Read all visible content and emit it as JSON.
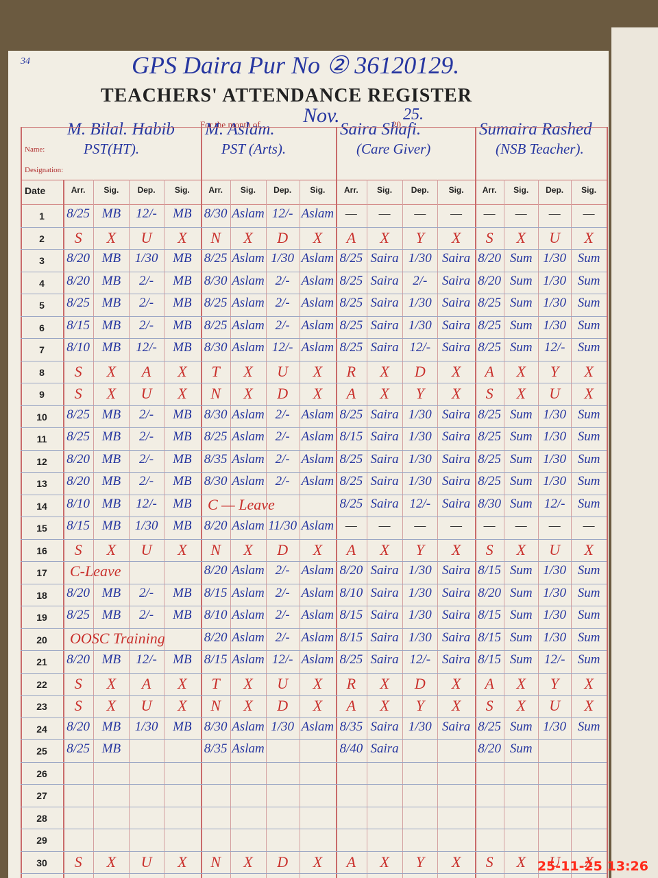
{
  "page_number": "34",
  "school": "GPS Daira Pur No ② 36120129.",
  "title": "TEACHERS' ATTENDANCE REGISTER",
  "month_label": "For the month of",
  "month": "Nov.",
  "year_prefix": "20",
  "year": "25.",
  "name_label": "Name:",
  "designation_label": "Designation:",
  "date_header": "Date",
  "column_headers": [
    "Arr.",
    "Sig.",
    "Dep.",
    "Sig."
  ],
  "teachers": [
    {
      "name": "M. Bilal. Habib",
      "designation": "PST(HT)."
    },
    {
      "name": "M. Aslam.",
      "designation": "PST (Arts)."
    },
    {
      "name": "Saira Shafi.",
      "designation": "(Care Giver)"
    },
    {
      "name": "Sumaira Rashed",
      "designation": "(NSB Teacher)."
    }
  ],
  "rows": [
    {
      "date": "1",
      "entries": [
        [
          "8/25",
          "MB",
          "12/-",
          "MB"
        ],
        [
          "8/30",
          "Aslam",
          "12/-",
          "Aslam"
        ],
        [
          "—",
          "—",
          "—",
          "—"
        ],
        [
          "—",
          "—",
          "—",
          "—"
        ]
      ]
    },
    {
      "date": "2",
      "entries": [
        [
          "S",
          "X",
          "U",
          "X"
        ],
        [
          "N",
          "X",
          "D",
          "X"
        ],
        [
          "A",
          "X",
          "Y",
          "X"
        ],
        [
          "S",
          "X",
          "U",
          "X"
        ]
      ]
    },
    {
      "date": "3",
      "entries": [
        [
          "8/20",
          "MB",
          "1/30",
          "MB"
        ],
        [
          "8/25",
          "Aslam",
          "1/30",
          "Aslam"
        ],
        [
          "8/25",
          "Saira",
          "1/30",
          "Saira"
        ],
        [
          "8/20",
          "Sum",
          "1/30",
          "Sum"
        ]
      ]
    },
    {
      "date": "4",
      "entries": [
        [
          "8/20",
          "MB",
          "2/-",
          "MB"
        ],
        [
          "8/30",
          "Aslam",
          "2/-",
          "Aslam"
        ],
        [
          "8/25",
          "Saira",
          "2/-",
          "Saira"
        ],
        [
          "8/20",
          "Sum",
          "1/30",
          "Sum"
        ]
      ]
    },
    {
      "date": "5",
      "entries": [
        [
          "8/25",
          "MB",
          "2/-",
          "MB"
        ],
        [
          "8/25",
          "Aslam",
          "2/-",
          "Aslam"
        ],
        [
          "8/25",
          "Saira",
          "1/30",
          "Saira"
        ],
        [
          "8/25",
          "Sum",
          "1/30",
          "Sum"
        ]
      ]
    },
    {
      "date": "6",
      "entries": [
        [
          "8/15",
          "MB",
          "2/-",
          "MB"
        ],
        [
          "8/25",
          "Aslam",
          "2/-",
          "Aslam"
        ],
        [
          "8/25",
          "Saira",
          "1/30",
          "Saira"
        ],
        [
          "8/25",
          "Sum",
          "1/30",
          "Sum"
        ]
      ]
    },
    {
      "date": "7",
      "entries": [
        [
          "8/10",
          "MB",
          "12/-",
          "MB"
        ],
        [
          "8/30",
          "Aslam",
          "12/-",
          "Aslam"
        ],
        [
          "8/25",
          "Saira",
          "12/-",
          "Saira"
        ],
        [
          "8/25",
          "Sum",
          "12/-",
          "Sum"
        ]
      ]
    },
    {
      "date": "8",
      "entries": [
        [
          "S",
          "X",
          "A",
          "X"
        ],
        [
          "T",
          "X",
          "U",
          "X"
        ],
        [
          "R",
          "X",
          "D",
          "X"
        ],
        [
          "A",
          "X",
          "Y",
          "X"
        ]
      ]
    },
    {
      "date": "9",
      "entries": [
        [
          "S",
          "X",
          "U",
          "X"
        ],
        [
          "N",
          "X",
          "D",
          "X"
        ],
        [
          "A",
          "X",
          "Y",
          "X"
        ],
        [
          "S",
          "X",
          "U",
          "X"
        ]
      ]
    },
    {
      "date": "10",
      "entries": [
        [
          "8/25",
          "MB",
          "2/-",
          "MB"
        ],
        [
          "8/30",
          "Aslam",
          "2/-",
          "Aslam"
        ],
        [
          "8/25",
          "Saira",
          "1/30",
          "Saira"
        ],
        [
          "8/25",
          "Sum",
          "1/30",
          "Sum"
        ]
      ]
    },
    {
      "date": "11",
      "entries": [
        [
          "8/25",
          "MB",
          "2/-",
          "MB"
        ],
        [
          "8/25",
          "Aslam",
          "2/-",
          "Aslam"
        ],
        [
          "8/15",
          "Saira",
          "1/30",
          "Saira"
        ],
        [
          "8/25",
          "Sum",
          "1/30",
          "Sum"
        ]
      ]
    },
    {
      "date": "12",
      "entries": [
        [
          "8/20",
          "MB",
          "2/-",
          "MB"
        ],
        [
          "8/35",
          "Aslam",
          "2/-",
          "Aslam"
        ],
        [
          "8/25",
          "Saira",
          "1/30",
          "Saira"
        ],
        [
          "8/25",
          "Sum",
          "1/30",
          "Sum"
        ]
      ]
    },
    {
      "date": "13",
      "entries": [
        [
          "8/20",
          "MB",
          "2/-",
          "MB"
        ],
        [
          "8/30",
          "Aslam",
          "2/-",
          "Aslam"
        ],
        [
          "8/25",
          "Saira",
          "1/30",
          "Saira"
        ],
        [
          "8/25",
          "Sum",
          "1/30",
          "Sum"
        ]
      ]
    },
    {
      "date": "14",
      "entries": [
        [
          "8/10",
          "MB",
          "12/-",
          "MB"
        ],
        {
          "note": "C — Leave"
        },
        [
          "8/25",
          "Saira",
          "12/-",
          "Saira"
        ],
        [
          "8/30",
          "Sum",
          "12/-",
          "Sum"
        ]
      ]
    },
    {
      "date": "15",
      "entries": [
        [
          "8/15",
          "MB",
          "1/30",
          "MB"
        ],
        [
          "8/20",
          "Aslam",
          "11/30",
          "Aslam"
        ],
        [
          "—",
          "—",
          "—",
          "—"
        ],
        [
          "—",
          "—",
          "—",
          "—"
        ]
      ]
    },
    {
      "date": "16",
      "entries": [
        [
          "S",
          "X",
          "U",
          "X"
        ],
        [
          "N",
          "X",
          "D",
          "X"
        ],
        [
          "A",
          "X",
          "Y",
          "X"
        ],
        [
          "S",
          "X",
          "U",
          "X"
        ]
      ]
    },
    {
      "date": "17",
      "entries": [
        {
          "note": "C-Leave"
        },
        [
          "8/20",
          "Aslam",
          "2/-",
          "Aslam"
        ],
        [
          "8/20",
          "Saira",
          "1/30",
          "Saira"
        ],
        [
          "8/15",
          "Sum",
          "1/30",
          "Sum"
        ]
      ]
    },
    {
      "date": "18",
      "entries": [
        [
          "8/20",
          "MB",
          "2/-",
          "MB"
        ],
        [
          "8/15",
          "Aslam",
          "2/-",
          "Aslam"
        ],
        [
          "8/10",
          "Saira",
          "1/30",
          "Saira"
        ],
        [
          "8/20",
          "Sum",
          "1/30",
          "Sum"
        ]
      ]
    },
    {
      "date": "19",
      "entries": [
        [
          "8/25",
          "MB",
          "2/-",
          "MB"
        ],
        [
          "8/10",
          "Aslam",
          "2/-",
          "Aslam"
        ],
        [
          "8/15",
          "Saira",
          "1/30",
          "Saira"
        ],
        [
          "8/15",
          "Sum",
          "1/30",
          "Sum"
        ]
      ]
    },
    {
      "date": "20",
      "entries": [
        {
          "note": "OOSC Training"
        },
        [
          "8/20",
          "Aslam",
          "2/-",
          "Aslam"
        ],
        [
          "8/15",
          "Saira",
          "1/30",
          "Saira"
        ],
        [
          "8/15",
          "Sum",
          "1/30",
          "Sum"
        ]
      ]
    },
    {
      "date": "21",
      "entries": [
        [
          "8/20",
          "MB",
          "12/-",
          "MB"
        ],
        [
          "8/15",
          "Aslam",
          "12/-",
          "Aslam"
        ],
        [
          "8/25",
          "Saira",
          "12/-",
          "Saira"
        ],
        [
          "8/15",
          "Sum",
          "12/-",
          "Sum"
        ]
      ]
    },
    {
      "date": "22",
      "entries": [
        [
          "S",
          "X",
          "A",
          "X"
        ],
        [
          "T",
          "X",
          "U",
          "X"
        ],
        [
          "R",
          "X",
          "D",
          "X"
        ],
        [
          "A",
          "X",
          "Y",
          "X"
        ]
      ]
    },
    {
      "date": "23",
      "entries": [
        [
          "S",
          "X",
          "U",
          "X"
        ],
        [
          "N",
          "X",
          "D",
          "X"
        ],
        [
          "A",
          "X",
          "Y",
          "X"
        ],
        [
          "S",
          "X",
          "U",
          "X"
        ]
      ]
    },
    {
      "date": "24",
      "entries": [
        [
          "8/20",
          "MB",
          "1/30",
          "MB"
        ],
        [
          "8/30",
          "Aslam",
          "1/30",
          "Aslam"
        ],
        [
          "8/35",
          "Saira",
          "1/30",
          "Saira"
        ],
        [
          "8/25",
          "Sum",
          "1/30",
          "Sum"
        ]
      ]
    },
    {
      "date": "25",
      "entries": [
        [
          "8/25",
          "MB"
        ],
        [
          "8/35",
          "Aslam"
        ],
        [
          "8/40",
          "Saira"
        ],
        [
          "8/20",
          "Sum"
        ]
      ]
    },
    {
      "date": "26"
    },
    {
      "date": "27"
    },
    {
      "date": "28"
    },
    {
      "date": "29"
    },
    {
      "date": "30",
      "entries": [
        [
          "S",
          "X",
          "U",
          "X"
        ],
        [
          "N",
          "X",
          "D",
          "X"
        ],
        [
          "A",
          "X",
          "Y",
          "X"
        ],
        [
          "S",
          "X",
          "U",
          "X"
        ]
      ]
    }
  ],
  "timestamp": "25-11-25 13:26"
}
